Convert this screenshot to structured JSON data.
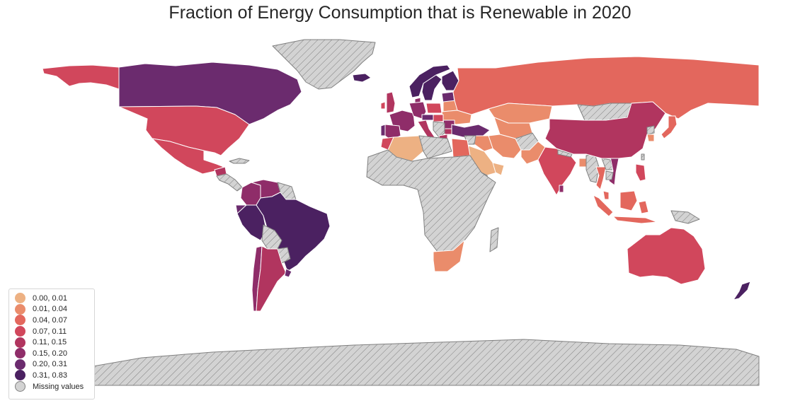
{
  "title": "Fraction of Energy Consumption that is Renewable in 2020",
  "legend": {
    "items": [
      {
        "label": "0.00, 0.01",
        "color": "#edb183"
      },
      {
        "label": "0.01, 0.04",
        "color": "#ea8c6b"
      },
      {
        "label": "0.04, 0.07",
        "color": "#e3675d"
      },
      {
        "label": "0.07, 0.11",
        "color": "#d1475c"
      },
      {
        "label": "0.11, 0.15",
        "color": "#b1355f"
      },
      {
        "label": "0.15, 0.20",
        "color": "#8f2d69"
      },
      {
        "label": "0.20, 0.31",
        "color": "#6b2b6e"
      },
      {
        "label": "0.31, 0.83",
        "color": "#4b2161"
      },
      {
        "label": "Missing values",
        "color": "#d3d3d3"
      }
    ]
  },
  "colors": {
    "missing_fill": "#d3d3d3",
    "missing_edge": "#808080",
    "country_edge": "#ffffff"
  },
  "regions": [
    {
      "name": "Alaska (USA)",
      "bin": 3
    },
    {
      "name": "Canada",
      "bin": 6
    },
    {
      "name": "United States",
      "bin": 3
    },
    {
      "name": "Mexico",
      "bin": 3
    },
    {
      "name": "Guatemala",
      "bin": 4
    },
    {
      "name": "Cuba",
      "bin": 8
    },
    {
      "name": "Central America",
      "bin": 8
    },
    {
      "name": "Greenland",
      "bin": 8
    },
    {
      "name": "Colombia",
      "bin": 5
    },
    {
      "name": "Venezuela",
      "bin": 5
    },
    {
      "name": "Guyana region",
      "bin": 8
    },
    {
      "name": "Ecuador",
      "bin": 6
    },
    {
      "name": "Peru",
      "bin": 7
    },
    {
      "name": "Brazil",
      "bin": 7
    },
    {
      "name": "Bolivia",
      "bin": 8
    },
    {
      "name": "Paraguay",
      "bin": 8
    },
    {
      "name": "Chile",
      "bin": 5
    },
    {
      "name": "Argentina",
      "bin": 4
    },
    {
      "name": "Uruguay",
      "bin": 6
    },
    {
      "name": "Iceland",
      "bin": 7
    },
    {
      "name": "Ireland",
      "bin": 3
    },
    {
      "name": "United Kingdom",
      "bin": 4
    },
    {
      "name": "Norway",
      "bin": 7
    },
    {
      "name": "Sweden",
      "bin": 7
    },
    {
      "name": "Finland",
      "bin": 7
    },
    {
      "name": "Baltic",
      "bin": 6
    },
    {
      "name": "Denmark",
      "bin": 5
    },
    {
      "name": "France",
      "bin": 5
    },
    {
      "name": "Portugal",
      "bin": 6
    },
    {
      "name": "Spain",
      "bin": 5
    },
    {
      "name": "Germany",
      "bin": 5
    },
    {
      "name": "Poland",
      "bin": 3
    },
    {
      "name": "Belarus",
      "bin": 1
    },
    {
      "name": "Ukraine",
      "bin": 1
    },
    {
      "name": "Austria",
      "bin": 6
    },
    {
      "name": "Italy",
      "bin": 4
    },
    {
      "name": "Hungary",
      "bin": 3
    },
    {
      "name": "Romania",
      "bin": 5
    },
    {
      "name": "Bulgaria",
      "bin": 4
    },
    {
      "name": "Balkans",
      "bin": 8
    },
    {
      "name": "Greece",
      "bin": 4
    },
    {
      "name": "Turkey",
      "bin": 6
    },
    {
      "name": "Russia",
      "bin": 2
    },
    {
      "name": "Kazakhstan",
      "bin": 1
    },
    {
      "name": "Mongolia",
      "bin": 8
    },
    {
      "name": "Central Asia",
      "bin": 1
    },
    {
      "name": "Afghanistan",
      "bin": 8
    },
    {
      "name": "Iran",
      "bin": 1
    },
    {
      "name": "Iraq",
      "bin": 1
    },
    {
      "name": "Syria",
      "bin": 8
    },
    {
      "name": "Saudi Arabia",
      "bin": 0
    },
    {
      "name": "Yemen",
      "bin": 8
    },
    {
      "name": "Oman",
      "bin": 0
    },
    {
      "name": "Pakistan",
      "bin": 1
    },
    {
      "name": "India",
      "bin": 3
    },
    {
      "name": "Nepal",
      "bin": 8
    },
    {
      "name": "Bangladesh",
      "bin": 1
    },
    {
      "name": "Sri Lanka",
      "bin": 5
    },
    {
      "name": "Myanmar",
      "bin": 8
    },
    {
      "name": "Thailand",
      "bin": 2
    },
    {
      "name": "Laos",
      "bin": 8
    },
    {
      "name": "Vietnam",
      "bin": 5
    },
    {
      "name": "Cambodia",
      "bin": 8
    },
    {
      "name": "China",
      "bin": 4
    },
    {
      "name": "North Korea",
      "bin": 8
    },
    {
      "name": "South Korea",
      "bin": 1
    },
    {
      "name": "Japan",
      "bin": 2
    },
    {
      "name": "Taiwan",
      "bin": 8
    },
    {
      "name": "Philippines",
      "bin": 3
    },
    {
      "name": "Malaysia",
      "bin": 2
    },
    {
      "name": "Sumatra",
      "bin": 2
    },
    {
      "name": "Borneo",
      "bin": 2
    },
    {
      "name": "Indonesia islands",
      "bin": 2
    },
    {
      "name": "Sulawesi",
      "bin": 2
    },
    {
      "name": "New Guinea",
      "bin": 8
    },
    {
      "name": "Australia",
      "bin": 3
    },
    {
      "name": "New Zealand",
      "bin": 7
    },
    {
      "name": "Morocco",
      "bin": 3
    },
    {
      "name": "Algeria",
      "bin": 0
    },
    {
      "name": "Libya",
      "bin": 8
    },
    {
      "name": "Egypt",
      "bin": 2
    },
    {
      "name": "Sub-Saharan Africa",
      "bin": 8
    },
    {
      "name": "Madagascar",
      "bin": 8
    },
    {
      "name": "South Africa",
      "bin": 1
    },
    {
      "name": "Antarctica",
      "bin": 8
    }
  ]
}
